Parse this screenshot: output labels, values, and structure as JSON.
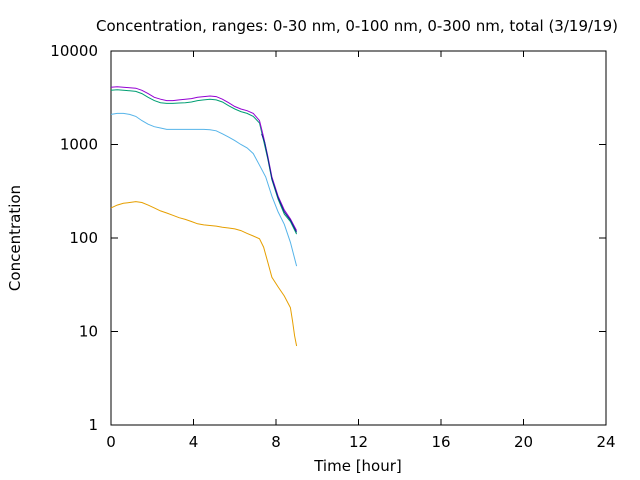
{
  "chart_data": {
    "type": "line",
    "title": "Concentration, ranges: 0-30 nm, 0-100 nm, 0-300 nm, total (3/19/19)",
    "xlabel": "Time [hour]",
    "ylabel": "Concentration",
    "xlim": [
      0,
      24
    ],
    "ylim": [
      1,
      10000
    ],
    "yscale": "log",
    "grid": false,
    "xticks": [
      0,
      4,
      8,
      12,
      16,
      20,
      24
    ],
    "yticks": [
      1,
      10,
      100,
      1000,
      10000
    ],
    "ytick_labels": [
      "1",
      "10",
      "100",
      "1000",
      "10000"
    ],
    "series": [
      {
        "color": "#e69f00",
        "x": [
          0.0,
          0.3,
          0.6,
          0.9,
          1.2,
          1.5,
          1.8,
          2.1,
          2.4,
          2.7,
          3.0,
          3.3,
          3.6,
          3.9,
          4.2,
          4.5,
          4.8,
          5.1,
          5.4,
          5.7,
          6.0,
          6.3,
          6.6,
          6.9,
          7.2,
          7.4,
          7.6,
          7.8,
          8.1,
          8.4,
          8.7,
          8.8,
          8.9,
          9.0
        ],
        "y": [
          210,
          225,
          235,
          240,
          245,
          240,
          225,
          210,
          195,
          185,
          175,
          165,
          158,
          150,
          142,
          138,
          136,
          134,
          130,
          128,
          125,
          120,
          112,
          105,
          98,
          80,
          55,
          38,
          30,
          24,
          18,
          13,
          9,
          7
        ]
      },
      {
        "color": "#56b4e9",
        "x": [
          0.0,
          0.3,
          0.6,
          0.9,
          1.2,
          1.5,
          1.8,
          2.1,
          2.4,
          2.7,
          3.0,
          3.3,
          3.6,
          3.9,
          4.2,
          4.5,
          4.8,
          5.1,
          5.4,
          5.7,
          6.0,
          6.3,
          6.6,
          6.9,
          7.2,
          7.5,
          7.8,
          8.1,
          8.4,
          8.7,
          9.0
        ],
        "y": [
          2100,
          2150,
          2150,
          2100,
          2000,
          1800,
          1650,
          1550,
          1500,
          1450,
          1450,
          1450,
          1450,
          1450,
          1450,
          1450,
          1440,
          1400,
          1300,
          1200,
          1100,
          1000,
          920,
          800,
          600,
          450,
          280,
          190,
          140,
          90,
          50
        ]
      },
      {
        "color": "#009e73",
        "x": [
          0.0,
          0.3,
          0.6,
          0.9,
          1.2,
          1.5,
          1.8,
          2.1,
          2.4,
          2.7,
          3.0,
          3.3,
          3.6,
          3.9,
          4.2,
          4.5,
          4.8,
          5.1,
          5.4,
          5.7,
          6.0,
          6.3,
          6.6,
          6.9,
          7.2,
          7.4,
          7.6,
          7.8,
          8.1,
          8.4,
          8.7,
          9.0
        ],
        "y": [
          3800,
          3850,
          3800,
          3750,
          3700,
          3500,
          3200,
          2950,
          2800,
          2750,
          2750,
          2780,
          2800,
          2850,
          2950,
          3000,
          3050,
          3000,
          2850,
          2600,
          2400,
          2250,
          2150,
          2000,
          1700,
          1100,
          700,
          420,
          260,
          180,
          150,
          110
        ]
      },
      {
        "color": "#9400d3",
        "x": [
          0.0,
          0.3,
          0.6,
          0.9,
          1.2,
          1.5,
          1.8,
          2.1,
          2.4,
          2.7,
          3.0,
          3.3,
          3.6,
          3.9,
          4.2,
          4.5,
          4.8,
          5.1,
          5.4,
          5.7,
          6.0,
          6.3,
          6.6,
          6.9,
          7.2,
          7.4,
          7.6,
          7.8,
          8.1,
          8.4,
          8.7,
          9.0
        ],
        "y": [
          4100,
          4150,
          4100,
          4050,
          4000,
          3800,
          3500,
          3200,
          3050,
          2950,
          2950,
          3000,
          3050,
          3100,
          3200,
          3250,
          3300,
          3250,
          3050,
          2800,
          2550,
          2400,
          2300,
          2150,
          1800,
          1200,
          750,
          450,
          280,
          200,
          160,
          120
        ]
      },
      {
        "color": "#0b2a8a",
        "x": [
          7.3,
          7.45,
          7.6,
          7.8,
          8.1,
          8.4,
          8.7,
          9.0
        ],
        "y": [
          1300,
          1050,
          720,
          430,
          270,
          190,
          155,
          115
        ]
      }
    ]
  }
}
